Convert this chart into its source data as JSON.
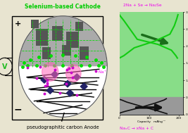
{
  "bg_color": "#e8e4d0",
  "title_cathode": "Selenium-based Cathode",
  "title_anode": "pseudographitic carbon Anode",
  "eq_top": "2Na + Se → Na₂Se",
  "eq_bottom": "NaₓC → xNa + C",
  "xlabel": "Capacity   mAhg⁻¹",
  "green_region_color": "#88dd88",
  "gray_region_color": "#999999",
  "cathode_curve_color": "#11cc11",
  "anode_curve_color": "#111111",
  "dark_arrow_color": "#1a6e1a",
  "black_arrow_color": "#111111",
  "cathode_label_color": "#00cc00",
  "eq_top_color": "#ee00ee",
  "eq_bottom_color": "#ee00ee",
  "na_label_color": "#ee00ee",
  "voltmeter_color": "#22bb22",
  "circle_upper_color": "#aaaaaa",
  "circle_lower_color": "#ffffff",
  "green_dot_color": "#00dd00",
  "magenta_blob_color": "#ff66bb",
  "magenta_dot_color": "#cc00cc",
  "black_sheet_color": "#111111"
}
